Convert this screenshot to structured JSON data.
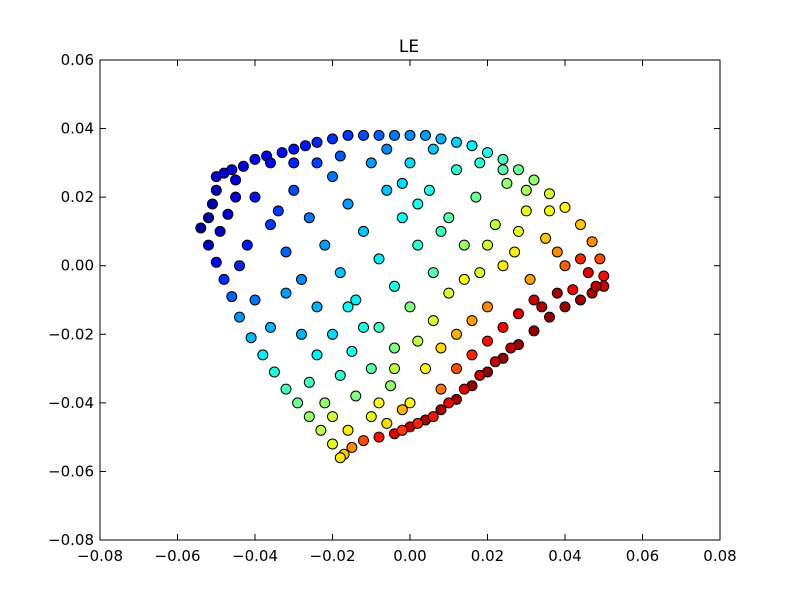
{
  "chart_data": {
    "type": "scatter",
    "title": "LE",
    "xlabel": "",
    "ylabel": "",
    "xlim": [
      -0.08,
      0.08
    ],
    "ylim": [
      -0.08,
      0.06
    ],
    "x_ticks": [
      -0.08,
      -0.06,
      -0.04,
      -0.02,
      0.0,
      0.02,
      0.04,
      0.06,
      0.08
    ],
    "x_tick_labels": [
      "−0.08",
      "−0.06",
      "−0.04",
      "−0.02",
      "0.00",
      "0.02",
      "0.04",
      "0.06",
      "0.08"
    ],
    "y_ticks": [
      -0.08,
      -0.06,
      -0.04,
      -0.02,
      0.0,
      0.02,
      0.04,
      0.06
    ],
    "y_tick_labels": [
      "−0.08",
      "−0.06",
      "−0.04",
      "−0.02",
      "0.00",
      "0.02",
      "0.04",
      "0.06"
    ],
    "grid": false,
    "legend": "none",
    "colormap": "jet",
    "marker_edge_color": "#000000",
    "points": [
      {
        "x": -0.054,
        "y": 0.011,
        "c": 0.03
      },
      {
        "x": -0.052,
        "y": 0.014,
        "c": 0.04
      },
      {
        "x": -0.051,
        "y": 0.018,
        "c": 0.05
      },
      {
        "x": -0.05,
        "y": 0.022,
        "c": 0.06
      },
      {
        "x": -0.05,
        "y": 0.026,
        "c": 0.07
      },
      {
        "x": -0.048,
        "y": 0.027,
        "c": 0.08
      },
      {
        "x": -0.046,
        "y": 0.028,
        "c": 0.09
      },
      {
        "x": -0.043,
        "y": 0.029,
        "c": 0.1
      },
      {
        "x": -0.04,
        "y": 0.031,
        "c": 0.11
      },
      {
        "x": -0.037,
        "y": 0.032,
        "c": 0.12
      },
      {
        "x": -0.033,
        "y": 0.033,
        "c": 0.13
      },
      {
        "x": -0.03,
        "y": 0.034,
        "c": 0.14
      },
      {
        "x": -0.027,
        "y": 0.035,
        "c": 0.15
      },
      {
        "x": -0.024,
        "y": 0.036,
        "c": 0.16
      },
      {
        "x": -0.02,
        "y": 0.037,
        "c": 0.17
      },
      {
        "x": -0.016,
        "y": 0.038,
        "c": 0.18
      },
      {
        "x": -0.012,
        "y": 0.038,
        "c": 0.2
      },
      {
        "x": -0.008,
        "y": 0.038,
        "c": 0.22
      },
      {
        "x": -0.004,
        "y": 0.038,
        "c": 0.24
      },
      {
        "x": 0.0,
        "y": 0.038,
        "c": 0.26
      },
      {
        "x": 0.004,
        "y": 0.038,
        "c": 0.28
      },
      {
        "x": 0.008,
        "y": 0.037,
        "c": 0.3
      },
      {
        "x": 0.012,
        "y": 0.036,
        "c": 0.33
      },
      {
        "x": 0.016,
        "y": 0.035,
        "c": 0.36
      },
      {
        "x": 0.02,
        "y": 0.033,
        "c": 0.4
      },
      {
        "x": 0.024,
        "y": 0.031,
        "c": 0.44
      },
      {
        "x": 0.028,
        "y": 0.028,
        "c": 0.48
      },
      {
        "x": 0.032,
        "y": 0.025,
        "c": 0.52
      },
      {
        "x": 0.036,
        "y": 0.021,
        "c": 0.58
      },
      {
        "x": 0.04,
        "y": 0.017,
        "c": 0.63
      },
      {
        "x": 0.044,
        "y": 0.012,
        "c": 0.68
      },
      {
        "x": 0.047,
        "y": 0.007,
        "c": 0.74
      },
      {
        "x": 0.049,
        "y": 0.002,
        "c": 0.8
      },
      {
        "x": 0.05,
        "y": -0.003,
        "c": 0.87
      },
      {
        "x": 0.05,
        "y": -0.006,
        "c": 0.92
      },
      {
        "x": 0.047,
        "y": -0.008,
        "c": 0.96
      },
      {
        "x": 0.044,
        "y": -0.01,
        "c": 0.97
      },
      {
        "x": 0.04,
        "y": -0.012,
        "c": 0.97
      },
      {
        "x": 0.036,
        "y": -0.015,
        "c": 0.98
      },
      {
        "x": 0.032,
        "y": -0.019,
        "c": 0.98
      },
      {
        "x": 0.028,
        "y": -0.023,
        "c": 0.98
      },
      {
        "x": 0.024,
        "y": -0.027,
        "c": 0.98
      },
      {
        "x": 0.02,
        "y": -0.031,
        "c": 0.98
      },
      {
        "x": 0.016,
        "y": -0.035,
        "c": 0.98
      },
      {
        "x": 0.012,
        "y": -0.039,
        "c": 0.97
      },
      {
        "x": 0.008,
        "y": -0.042,
        "c": 0.96
      },
      {
        "x": 0.004,
        "y": -0.045,
        "c": 0.95
      },
      {
        "x": 0.0,
        "y": -0.047,
        "c": 0.93
      },
      {
        "x": -0.004,
        "y": -0.049,
        "c": 0.9
      },
      {
        "x": -0.008,
        "y": -0.05,
        "c": 0.86
      },
      {
        "x": -0.012,
        "y": -0.051,
        "c": 0.8
      },
      {
        "x": -0.015,
        "y": -0.053,
        "c": 0.74
      },
      {
        "x": -0.017,
        "y": -0.055,
        "c": 0.68
      },
      {
        "x": -0.018,
        "y": -0.056,
        "c": 0.64
      },
      {
        "x": -0.02,
        "y": -0.052,
        "c": 0.6
      },
      {
        "x": -0.023,
        "y": -0.048,
        "c": 0.56
      },
      {
        "x": -0.026,
        "y": -0.044,
        "c": 0.52
      },
      {
        "x": -0.029,
        "y": -0.04,
        "c": 0.48
      },
      {
        "x": -0.032,
        "y": -0.036,
        "c": 0.44
      },
      {
        "x": -0.035,
        "y": -0.031,
        "c": 0.4
      },
      {
        "x": -0.038,
        "y": -0.026,
        "c": 0.36
      },
      {
        "x": -0.041,
        "y": -0.021,
        "c": 0.31
      },
      {
        "x": -0.044,
        "y": -0.015,
        "c": 0.27
      },
      {
        "x": -0.046,
        "y": -0.009,
        "c": 0.22
      },
      {
        "x": -0.048,
        "y": -0.004,
        "c": 0.17
      },
      {
        "x": -0.05,
        "y": 0.001,
        "c": 0.12
      },
      {
        "x": -0.052,
        "y": 0.006,
        "c": 0.08
      },
      {
        "x": -0.049,
        "y": 0.01,
        "c": 0.07
      },
      {
        "x": -0.047,
        "y": 0.015,
        "c": 0.08
      },
      {
        "x": -0.045,
        "y": 0.02,
        "c": 0.09
      },
      {
        "x": -0.045,
        "y": 0.025,
        "c": 0.1
      },
      {
        "x": -0.04,
        "y": 0.02,
        "c": 0.14
      },
      {
        "x": -0.036,
        "y": 0.012,
        "c": 0.18
      },
      {
        "x": -0.032,
        "y": 0.004,
        "c": 0.22
      },
      {
        "x": -0.028,
        "y": -0.004,
        "c": 0.26
      },
      {
        "x": -0.024,
        "y": -0.012,
        "c": 0.3
      },
      {
        "x": -0.03,
        "y": 0.022,
        "c": 0.2
      },
      {
        "x": -0.026,
        "y": 0.014,
        "c": 0.24
      },
      {
        "x": -0.022,
        "y": 0.006,
        "c": 0.28
      },
      {
        "x": -0.018,
        "y": -0.002,
        "c": 0.32
      },
      {
        "x": -0.014,
        "y": -0.01,
        "c": 0.36
      },
      {
        "x": -0.02,
        "y": 0.026,
        "c": 0.24
      },
      {
        "x": -0.016,
        "y": 0.018,
        "c": 0.28
      },
      {
        "x": -0.012,
        "y": 0.01,
        "c": 0.32
      },
      {
        "x": -0.008,
        "y": 0.002,
        "c": 0.36
      },
      {
        "x": -0.004,
        "y": -0.006,
        "c": 0.4
      },
      {
        "x": -0.01,
        "y": 0.03,
        "c": 0.28
      },
      {
        "x": -0.006,
        "y": 0.022,
        "c": 0.32
      },
      {
        "x": -0.002,
        "y": 0.014,
        "c": 0.38
      },
      {
        "x": 0.002,
        "y": 0.006,
        "c": 0.42
      },
      {
        "x": 0.006,
        "y": -0.002,
        "c": 0.46
      },
      {
        "x": 0.0,
        "y": 0.03,
        "c": 0.34
      },
      {
        "x": 0.005,
        "y": 0.022,
        "c": 0.4
      },
      {
        "x": 0.01,
        "y": 0.014,
        "c": 0.46
      },
      {
        "x": 0.014,
        "y": 0.006,
        "c": 0.52
      },
      {
        "x": 0.018,
        "y": -0.002,
        "c": 0.58
      },
      {
        "x": 0.012,
        "y": 0.028,
        "c": 0.42
      },
      {
        "x": 0.017,
        "y": 0.02,
        "c": 0.48
      },
      {
        "x": 0.022,
        "y": 0.012,
        "c": 0.56
      },
      {
        "x": 0.027,
        "y": 0.004,
        "c": 0.64
      },
      {
        "x": 0.031,
        "y": -0.004,
        "c": 0.72
      },
      {
        "x": 0.025,
        "y": 0.024,
        "c": 0.52
      },
      {
        "x": 0.03,
        "y": 0.016,
        "c": 0.6
      },
      {
        "x": 0.035,
        "y": 0.008,
        "c": 0.68
      },
      {
        "x": 0.04,
        "y": 0.0,
        "c": 0.78
      },
      {
        "x": 0.042,
        "y": -0.007,
        "c": 0.88
      },
      {
        "x": -0.02,
        "y": -0.02,
        "c": 0.34
      },
      {
        "x": -0.015,
        "y": -0.025,
        "c": 0.4
      },
      {
        "x": -0.01,
        "y": -0.03,
        "c": 0.46
      },
      {
        "x": -0.005,
        "y": -0.035,
        "c": 0.52
      },
      {
        "x": 0.0,
        "y": -0.04,
        "c": 0.62
      },
      {
        "x": -0.018,
        "y": -0.032,
        "c": 0.42
      },
      {
        "x": -0.014,
        "y": -0.038,
        "c": 0.5
      },
      {
        "x": -0.01,
        "y": -0.044,
        "c": 0.6
      },
      {
        "x": -0.006,
        "y": -0.046,
        "c": 0.66
      },
      {
        "x": -0.002,
        "y": -0.042,
        "c": 0.7
      },
      {
        "x": 0.004,
        "y": -0.03,
        "c": 0.62
      },
      {
        "x": 0.008,
        "y": -0.024,
        "c": 0.66
      },
      {
        "x": 0.012,
        "y": -0.02,
        "c": 0.7
      },
      {
        "x": 0.016,
        "y": -0.016,
        "c": 0.72
      },
      {
        "x": 0.02,
        "y": -0.012,
        "c": 0.74
      },
      {
        "x": 0.008,
        "y": -0.036,
        "c": 0.76
      },
      {
        "x": 0.012,
        "y": -0.03,
        "c": 0.8
      },
      {
        "x": 0.016,
        "y": -0.026,
        "c": 0.84
      },
      {
        "x": 0.02,
        "y": -0.022,
        "c": 0.86
      },
      {
        "x": 0.024,
        "y": -0.018,
        "c": 0.88
      },
      {
        "x": 0.028,
        "y": -0.014,
        "c": 0.9
      },
      {
        "x": 0.032,
        "y": -0.01,
        "c": 0.92
      },
      {
        "x": -0.028,
        "y": -0.02,
        "c": 0.3
      },
      {
        "x": -0.024,
        "y": -0.026,
        "c": 0.36
      },
      {
        "x": -0.026,
        "y": -0.034,
        "c": 0.44
      },
      {
        "x": -0.022,
        "y": -0.04,
        "c": 0.52
      },
      {
        "x": -0.008,
        "y": -0.018,
        "c": 0.44
      },
      {
        "x": -0.004,
        "y": -0.024,
        "c": 0.5
      },
      {
        "x": 0.0,
        "y": -0.012,
        "c": 0.5
      },
      {
        "x": 0.01,
        "y": -0.008,
        "c": 0.58
      },
      {
        "x": 0.014,
        "y": -0.004,
        "c": 0.62
      },
      {
        "x": 0.036,
        "y": 0.016,
        "c": 0.62
      },
      {
        "x": 0.038,
        "y": 0.004,
        "c": 0.74
      },
      {
        "x": 0.044,
        "y": 0.002,
        "c": 0.84
      },
      {
        "x": 0.046,
        "y": -0.002,
        "c": 0.9
      },
      {
        "x": 0.048,
        "y": -0.006,
        "c": 0.94
      },
      {
        "x": 0.038,
        "y": -0.008,
        "c": 0.96
      },
      {
        "x": 0.034,
        "y": -0.012,
        "c": 0.95
      },
      {
        "x": 0.026,
        "y": -0.024,
        "c": 0.94
      },
      {
        "x": 0.022,
        "y": -0.028,
        "c": 0.93
      },
      {
        "x": 0.018,
        "y": -0.032,
        "c": 0.92
      },
      {
        "x": 0.014,
        "y": -0.036,
        "c": 0.9
      },
      {
        "x": 0.01,
        "y": -0.04,
        "c": 0.88
      },
      {
        "x": 0.006,
        "y": -0.044,
        "c": 0.86
      },
      {
        "x": 0.002,
        "y": -0.046,
        "c": 0.84
      },
      {
        "x": -0.002,
        "y": -0.048,
        "c": 0.82
      },
      {
        "x": -0.016,
        "y": -0.048,
        "c": 0.64
      },
      {
        "x": -0.02,
        "y": -0.044,
        "c": 0.58
      },
      {
        "x": -0.036,
        "y": 0.03,
        "c": 0.13
      },
      {
        "x": -0.03,
        "y": 0.03,
        "c": 0.16
      },
      {
        "x": -0.024,
        "y": 0.03,
        "c": 0.19
      },
      {
        "x": -0.018,
        "y": 0.032,
        "c": 0.21
      },
      {
        "x": -0.006,
        "y": 0.034,
        "c": 0.26
      },
      {
        "x": 0.006,
        "y": 0.034,
        "c": 0.32
      },
      {
        "x": 0.018,
        "y": 0.03,
        "c": 0.42
      },
      {
        "x": 0.024,
        "y": 0.028,
        "c": 0.46
      },
      {
        "x": 0.03,
        "y": 0.022,
        "c": 0.54
      },
      {
        "x": -0.042,
        "y": 0.006,
        "c": 0.14
      },
      {
        "x": -0.044,
        "y": 0.0,
        "c": 0.16
      },
      {
        "x": -0.04,
        "y": -0.01,
        "c": 0.24
      },
      {
        "x": -0.036,
        "y": -0.018,
        "c": 0.3
      },
      {
        "x": -0.032,
        "y": -0.008,
        "c": 0.28
      },
      {
        "x": -0.034,
        "y": 0.016,
        "c": 0.18
      },
      {
        "x": -0.012,
        "y": -0.018,
        "c": 0.4
      },
      {
        "x": -0.016,
        "y": -0.012,
        "c": 0.38
      },
      {
        "x": 0.002,
        "y": 0.018,
        "c": 0.4
      },
      {
        "x": 0.008,
        "y": 0.01,
        "c": 0.44
      },
      {
        "x": -0.002,
        "y": 0.024,
        "c": 0.34
      },
      {
        "x": 0.02,
        "y": 0.006,
        "c": 0.58
      },
      {
        "x": 0.024,
        "y": 0.0,
        "c": 0.64
      },
      {
        "x": 0.028,
        "y": 0.01,
        "c": 0.6
      },
      {
        "x": 0.006,
        "y": -0.016,
        "c": 0.58
      },
      {
        "x": -0.008,
        "y": -0.04,
        "c": 0.62
      },
      {
        "x": -0.004,
        "y": -0.03,
        "c": 0.56
      },
      {
        "x": 0.002,
        "y": -0.022,
        "c": 0.56
      }
    ]
  }
}
